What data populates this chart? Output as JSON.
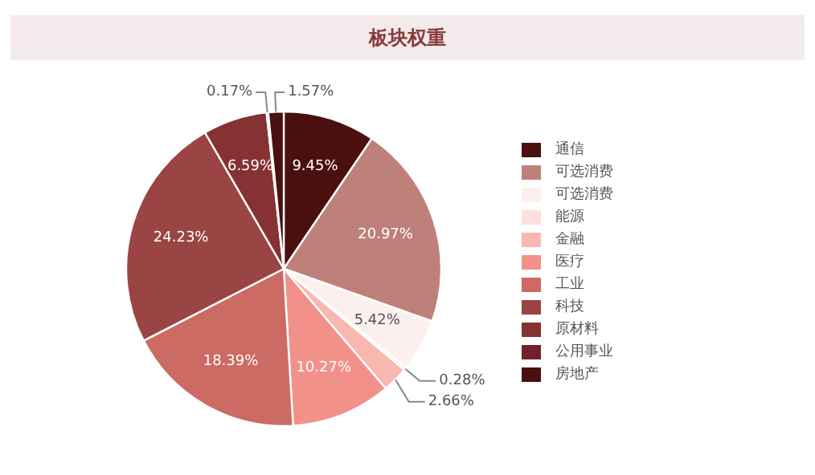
{
  "chart_data": {
    "type": "pie",
    "title": "板块权重",
    "categories": [
      "通信",
      "可选消费",
      "可选消费",
      "能源",
      "金融",
      "医疗",
      "工业",
      "科技",
      "原材料",
      "公用事业",
      "房地产"
    ],
    "values": [
      9.45,
      20.97,
      5.42,
      0.28,
      2.66,
      10.27,
      18.39,
      24.23,
      6.59,
      0.17,
      1.57
    ],
    "colors": [
      "#4a1010",
      "#be817a",
      "#fcf0ef",
      "#fde0de",
      "#f8b8b0",
      "#f2918a",
      "#cc6a64",
      "#9a4444",
      "#873232",
      "#74202a",
      "#4a1010"
    ],
    "value_labels": [
      "9.45%",
      "20.97%",
      "5.42%",
      "0.28%",
      "2.66%",
      "10.27%",
      "18.39%",
      "24.23%",
      "6.59%",
      "0.17%",
      "1.57%"
    ],
    "legend": "right"
  }
}
